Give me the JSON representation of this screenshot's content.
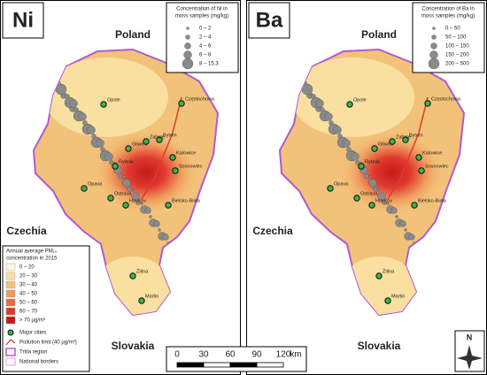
{
  "panels": [
    {
      "label": "Ni",
      "legend_title": [
        "Concentration of Ni in",
        "moss samples (mg/kg)"
      ],
      "legend_items": [
        "0 – 2",
        "2 – 4",
        "4 – 6",
        "6 – 8",
        "8 – 15.3"
      ]
    },
    {
      "label": "Ba",
      "legend_title": [
        "Concentration of Ba in",
        "moss samples (mg/kg)"
      ],
      "legend_items": [
        "0 – 50",
        "50 – 100",
        "100 – 150",
        "150 – 200",
        "200 – 500"
      ]
    }
  ],
  "countries": [
    "Poland",
    "Czechia",
    "Slovakia"
  ],
  "cities": [
    "Częstochowa",
    "Opole",
    "Bytom",
    "Gliwice",
    "Zabrze",
    "Katowice",
    "Rybnik",
    "Sosnowiec",
    "Opava",
    "Ostrava",
    "Havířov",
    "Bielsko-Biała",
    "Žilina",
    "Martin"
  ],
  "pm_legend": {
    "title": [
      "Annual average PM₁₀",
      "concentration in 2015"
    ],
    "items": [
      {
        "label": "0 – 20",
        "color": "#fdf6dc"
      },
      {
        "label": "20 – 30",
        "color": "#f9dfa0"
      },
      {
        "label": "30 – 40",
        "color": "#f3c27a"
      },
      {
        "label": "40 – 50",
        "color": "#ef9a5c"
      },
      {
        "label": "50 – 60",
        "color": "#e96a44"
      },
      {
        "label": "60 – 70",
        "color": "#e0392f"
      },
      {
        "label": "> 70 µg/m³",
        "color": "#c41a1a"
      }
    ],
    "extra": [
      "Major cities",
      "Pollution limit (40 µg/m³)",
      "Tritia region",
      "National borders"
    ]
  },
  "scale": {
    "ticks": [
      0,
      30,
      60,
      90,
      120
    ],
    "unit": "km"
  },
  "north": "N"
}
